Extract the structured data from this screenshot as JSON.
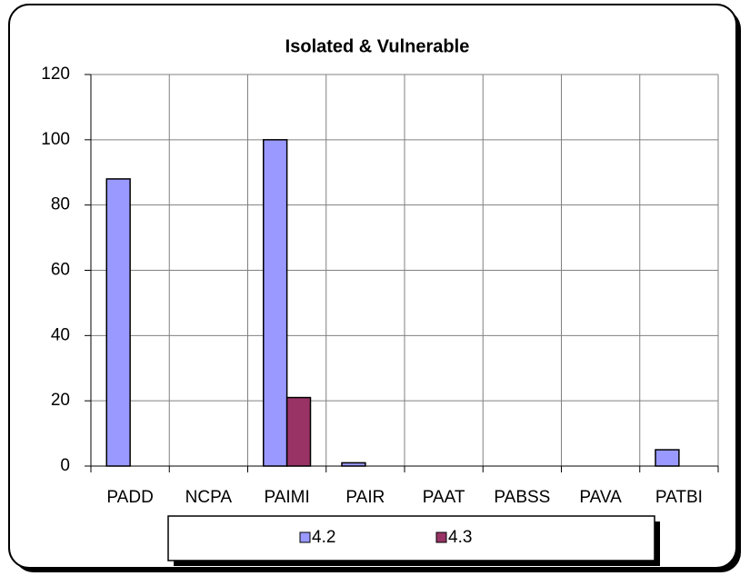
{
  "chart_data": {
    "type": "bar",
    "title": "Isolated & Vulnerable",
    "categories": [
      "PADD",
      "NCPA",
      "PAIMI",
      "PAIR",
      "PAAT",
      "PABSS",
      "PAVA",
      "PATBI"
    ],
    "series": [
      {
        "name": "4.2",
        "color": "#9999ff",
        "values": [
          88,
          0,
          100,
          1,
          0,
          0,
          0,
          5
        ]
      },
      {
        "name": "4.3",
        "color": "#993366",
        "values": [
          0,
          0,
          21,
          0,
          0,
          0,
          0,
          0
        ]
      }
    ],
    "ylim": [
      0,
      120
    ],
    "yticks": [
      0,
      20,
      40,
      60,
      80,
      100,
      120
    ],
    "grid": true,
    "legend": "bottom"
  }
}
